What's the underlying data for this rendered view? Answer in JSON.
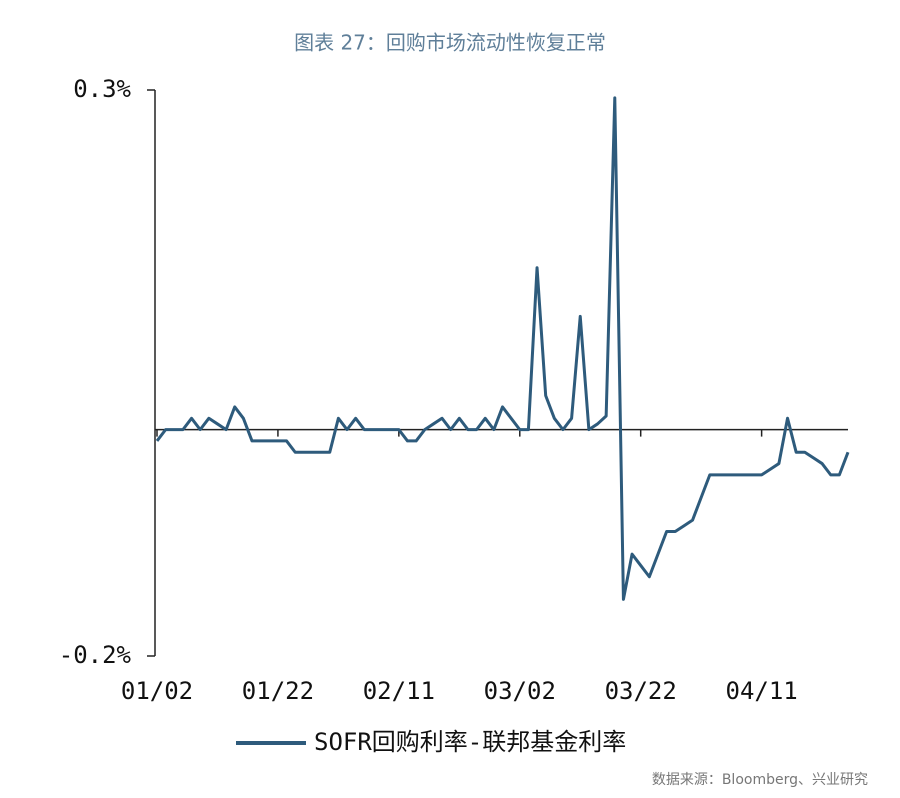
{
  "chart_data": {
    "type": "line",
    "title": "图表 27：回购市场流动性恢复正常",
    "source": "数据来源：Bloomberg、兴业研究",
    "categories": [
      "01/02",
      null,
      null,
      null,
      null,
      null,
      null,
      null,
      null,
      null,
      null,
      null,
      null,
      null,
      "01/22",
      null,
      null,
      null,
      null,
      null,
      null,
      null,
      null,
      null,
      null,
      null,
      null,
      null,
      "02/11",
      null,
      null,
      null,
      null,
      null,
      null,
      null,
      null,
      null,
      null,
      null,
      null,
      null,
      "03/02",
      null,
      null,
      null,
      null,
      null,
      null,
      null,
      null,
      null,
      null,
      null,
      null,
      null,
      "03/22",
      null,
      null,
      null,
      null,
      null,
      null,
      null,
      null,
      null,
      null,
      null,
      null,
      null,
      "04/11",
      null,
      null,
      null,
      null,
      null,
      null,
      null,
      null,
      null,
      null
    ],
    "series": [
      {
        "name": "SOFR回购利率-联邦基金利率",
        "color": "#2e5b7c",
        "values": [
          -0.01,
          0,
          0,
          0,
          0.01,
          0,
          0.01,
          0.005,
          0,
          0.02,
          0.01,
          -0.01,
          -0.01,
          -0.01,
          -0.01,
          -0.01,
          -0.02,
          -0.02,
          -0.02,
          -0.02,
          -0.02,
          0.01,
          0,
          0.01,
          0,
          0,
          0,
          0,
          0,
          -0.01,
          -0.01,
          0,
          0.005,
          0.01,
          0,
          0.01,
          0,
          0,
          0.01,
          0,
          0.02,
          0.01,
          0,
          0,
          0.143,
          0.03,
          0.01,
          0,
          0.01,
          0.1,
          0,
          0.005,
          0.012,
          0.293,
          -0.15,
          -0.11,
          -0.12,
          -0.13,
          -0.11,
          -0.09,
          -0.09,
          -0.085,
          -0.08,
          -0.06,
          -0.04,
          -0.04,
          -0.04,
          -0.04,
          -0.04,
          -0.04,
          -0.04,
          -0.035,
          -0.03,
          0.01,
          -0.02,
          -0.02,
          -0.025,
          -0.03,
          -0.04,
          -0.04,
          -0.02
        ]
      }
    ],
    "ylim": [
      -0.2,
      0.3
    ],
    "yticks": [
      {
        "value": 0.3,
        "label": "0.3%"
      },
      {
        "value": -0.2,
        "label": "-0.2%"
      }
    ],
    "legend": "bottom"
  }
}
